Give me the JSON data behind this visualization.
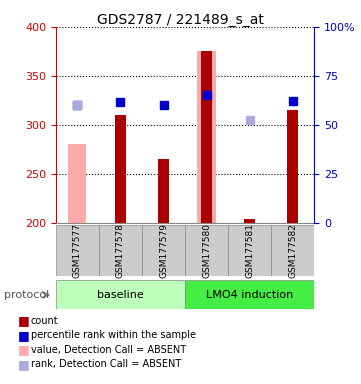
{
  "title": "GDS2787 / 221489_s_at",
  "samples": [
    "GSM177577",
    "GSM177578",
    "GSM177579",
    "GSM177580",
    "GSM177581",
    "GSM177582"
  ],
  "groups": [
    "baseline",
    "baseline",
    "baseline",
    "LMO4 induction",
    "LMO4 induction",
    "LMO4 induction"
  ],
  "group_labels": [
    "baseline",
    "LMO4 induction"
  ],
  "ylim_left": [
    200,
    400
  ],
  "ylim_right": [
    0,
    100
  ],
  "yticks_left": [
    200,
    250,
    300,
    350,
    400
  ],
  "yticks_right": [
    0,
    25,
    50,
    75,
    100
  ],
  "yticklabels_right": [
    "0",
    "25",
    "50",
    "75",
    "100%"
  ],
  "red_bars": [
    null,
    310,
    265,
    375,
    204,
    315
  ],
  "pink_bars": [
    280,
    null,
    null,
    375,
    null,
    null
  ],
  "blue_squares": [
    320,
    323,
    320,
    330,
    null,
    324
  ],
  "light_blue_squares": [
    320,
    null,
    null,
    null,
    305,
    null
  ],
  "colors": {
    "red_bar": "#aa0000",
    "pink_bar": "#ffaaaa",
    "blue_square": "#0000cc",
    "light_blue_square": "#aaaadd",
    "grid": "#000000",
    "bg_plot": "#ffffff",
    "bg_sample": "#cccccc",
    "bg_baseline": "#aaffaa",
    "bg_lmo4": "#44ee44",
    "left_axis_color": "#cc0000",
    "right_axis_color": "#0000cc"
  },
  "legend": [
    {
      "label": "count",
      "color": "#aa0000",
      "marker": "s"
    },
    {
      "label": "percentile rank within the sample",
      "color": "#0000cc",
      "marker": "s"
    },
    {
      "label": "value, Detection Call = ABSENT",
      "color": "#ffaaaa",
      "marker": "s"
    },
    {
      "label": "rank, Detection Call = ABSENT",
      "color": "#aaaadd",
      "marker": "s"
    }
  ]
}
